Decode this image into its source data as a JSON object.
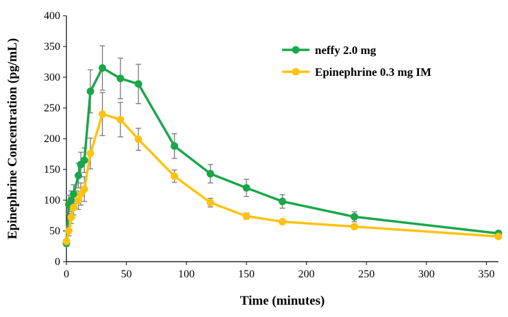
{
  "chart_data": {
    "type": "line",
    "xlabel": "Time (minutes)",
    "ylabel": "Epinephrine Concentration (pg/mL)",
    "xlim": [
      0,
      360
    ],
    "ylim": [
      0,
      400
    ],
    "xticks": [
      0,
      50,
      100,
      150,
      200,
      250,
      300,
      350
    ],
    "yticks": [
      0,
      50,
      100,
      150,
      200,
      250,
      300,
      350,
      400
    ],
    "grid": false,
    "legend_position": "top-right",
    "error_bars": true,
    "series": [
      {
        "name": "neffy 2.0 mg",
        "color": "#1aa64a",
        "x": [
          0,
          2,
          4,
          6,
          10,
          12,
          15,
          20,
          30,
          45,
          60,
          90,
          120,
          150,
          180,
          240,
          360
        ],
        "y": [
          30,
          93,
          100,
          110,
          140,
          158,
          165,
          277,
          315,
          298,
          289,
          188,
          143,
          120,
          98,
          73,
          46
        ],
        "err": [
          5,
          15,
          15,
          15,
          20,
          20,
          20,
          35,
          36,
          33,
          32,
          20,
          15,
          14,
          11,
          8,
          4
        ]
      },
      {
        "name": "Epinephrine 0.3 mg IM",
        "color": "#ffc20e",
        "x": [
          0,
          2,
          4,
          6,
          10,
          12,
          15,
          20,
          30,
          45,
          60,
          90,
          120,
          150,
          180,
          240,
          360
        ],
        "y": [
          33,
          50,
          72,
          88,
          100,
          110,
          118,
          176,
          240,
          231,
          199,
          139,
          96,
          74,
          65,
          57,
          41
        ],
        "err": [
          4,
          8,
          10,
          12,
          15,
          18,
          20,
          25,
          35,
          28,
          18,
          10,
          7,
          5,
          4,
          3,
          2
        ]
      }
    ]
  }
}
